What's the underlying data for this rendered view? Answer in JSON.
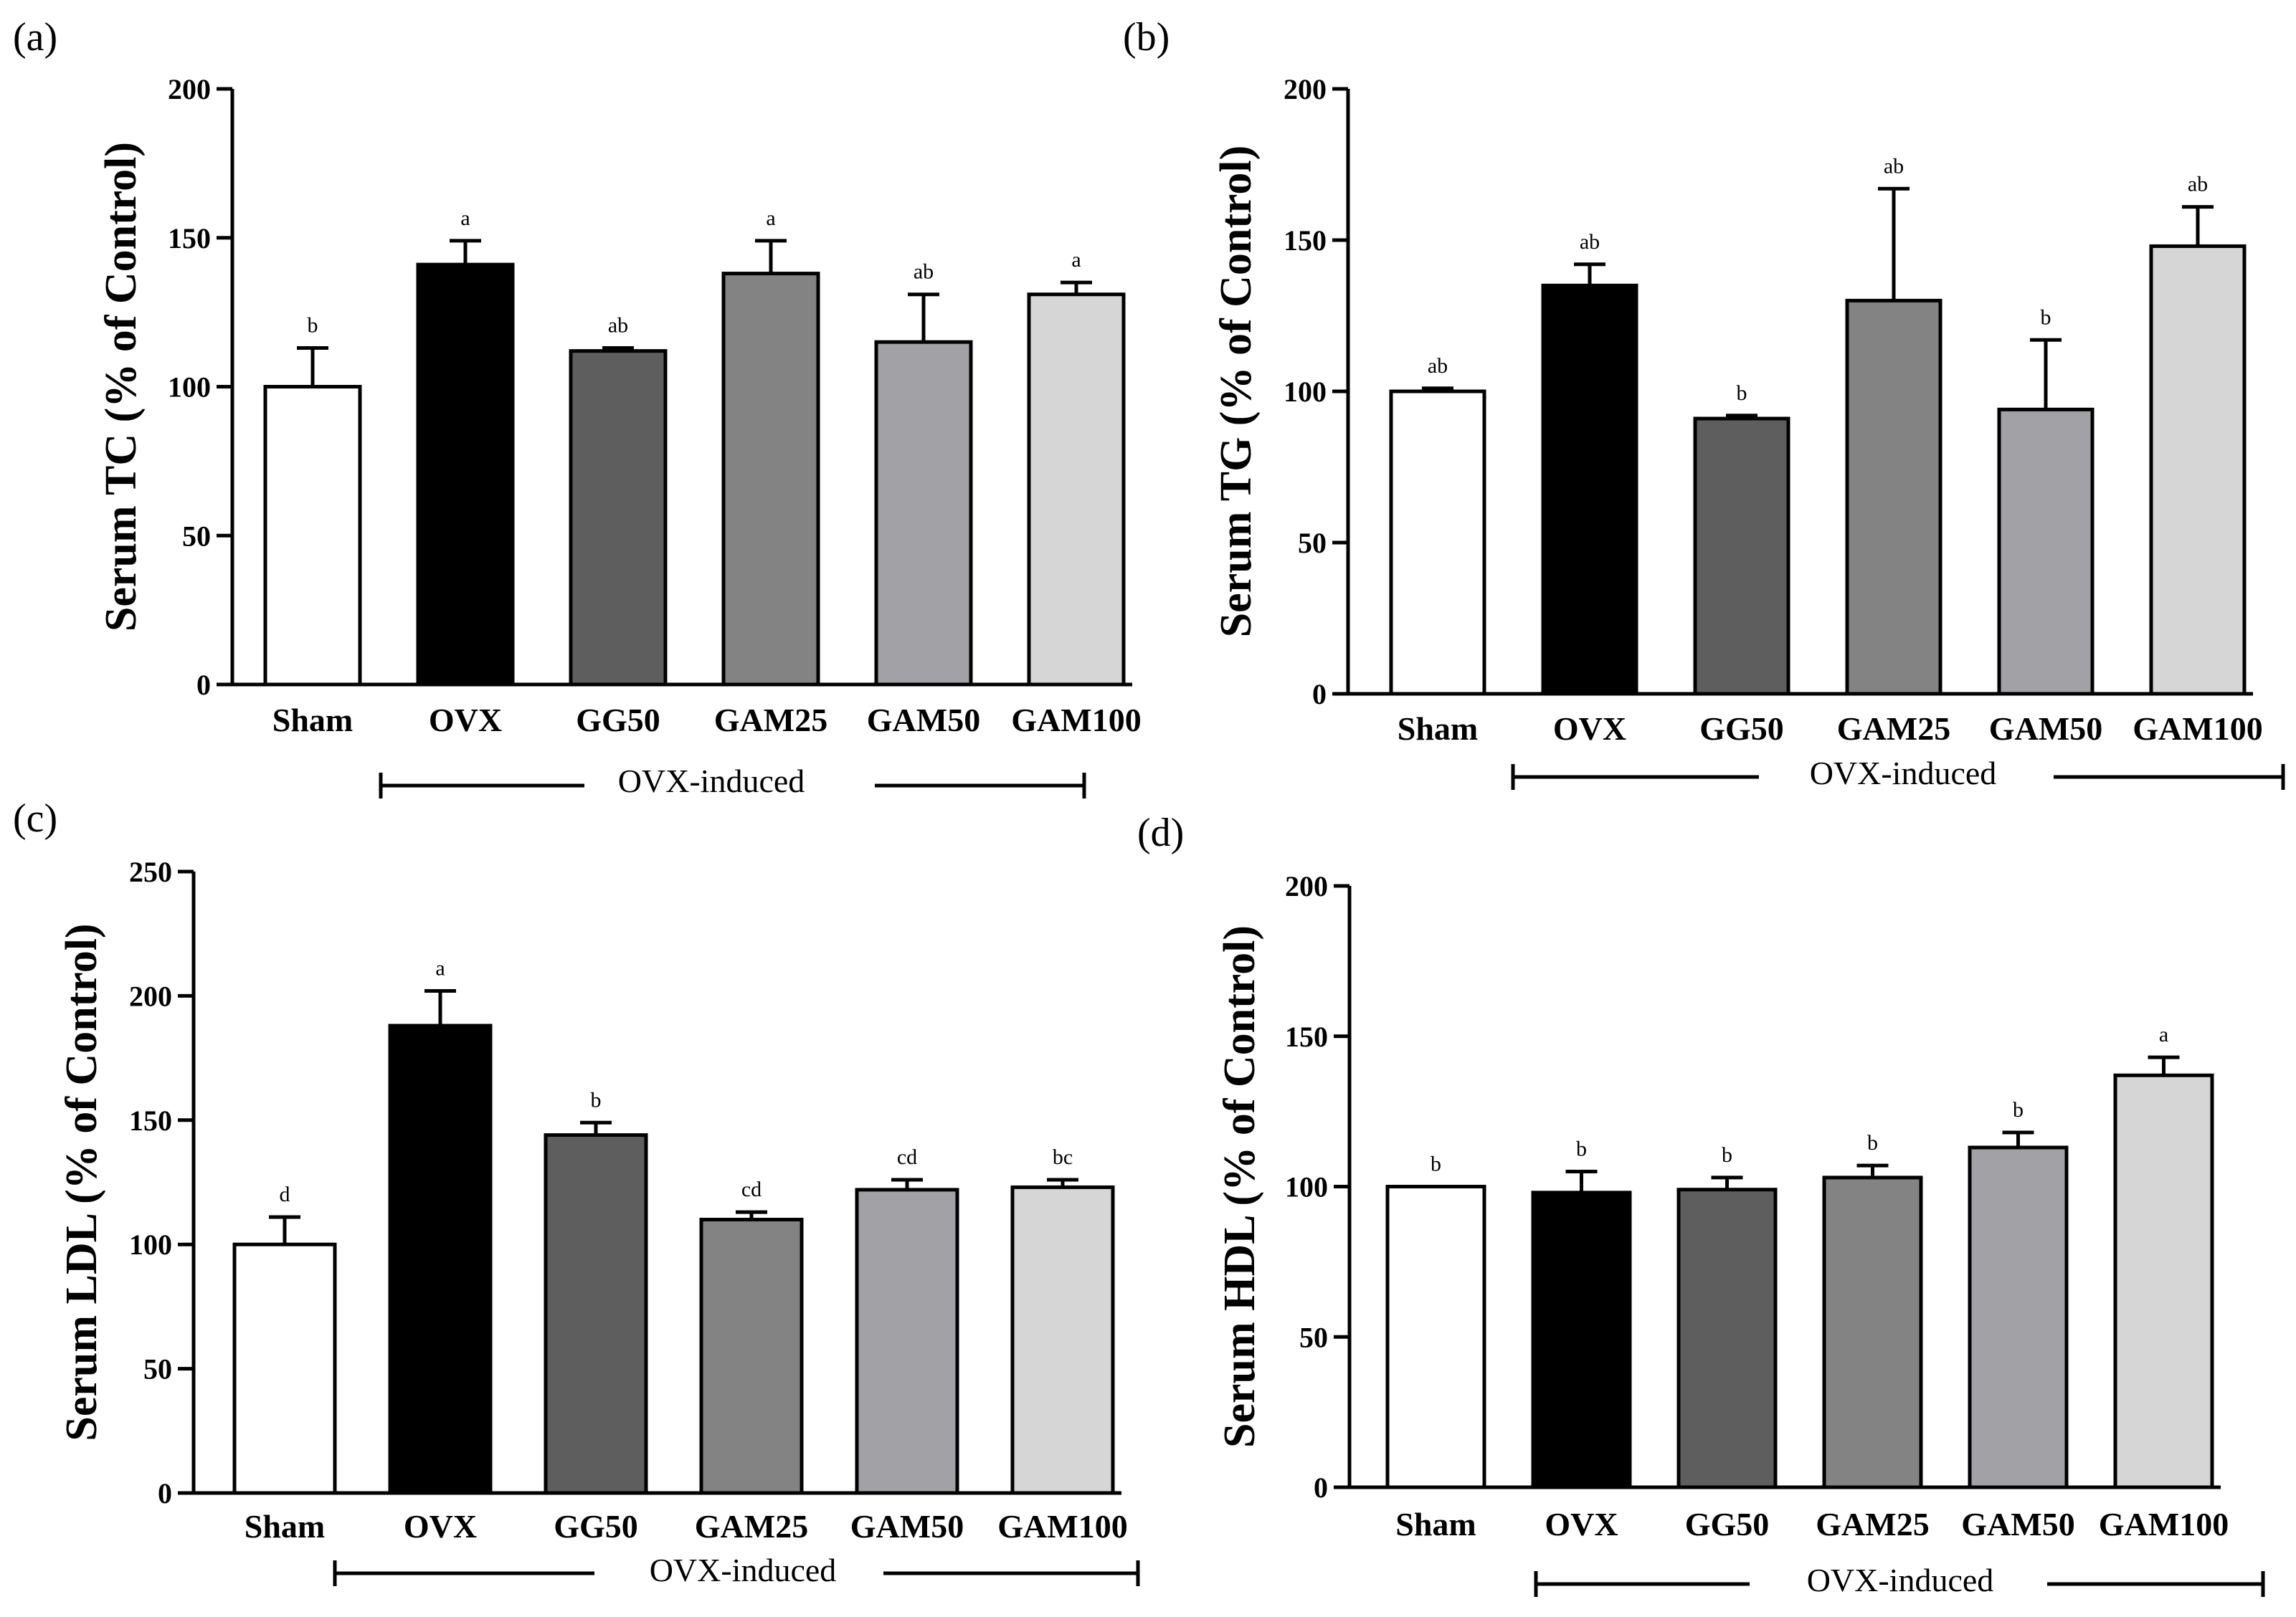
{
  "chart_data": [
    {
      "type": "bar",
      "panel_label": "(a)",
      "ylabel": "Serum TC (% of Control)",
      "ylim": [
        0,
        200
      ],
      "yticks": [
        0,
        50,
        100,
        150,
        200
      ],
      "categories": [
        "Sham",
        "OVX",
        "GG50",
        "GAM25",
        "GAM50",
        "GAM100"
      ],
      "values": [
        100,
        141,
        112,
        138,
        115,
        131
      ],
      "errors": [
        13,
        8,
        1,
        11,
        16,
        4
      ],
      "significance": [
        "b",
        "a",
        "ab",
        "a",
        "ab",
        "a"
      ],
      "colors": [
        "#ffffff",
        "#000000",
        "#5e5e5e",
        "#838383",
        "#a2a2a6",
        "#d6d6d6"
      ],
      "group_label": "OVX-induced"
    },
    {
      "type": "bar",
      "panel_label": "(b)",
      "ylabel": "Serum TG (% of Control)",
      "ylim": [
        0,
        200
      ],
      "yticks": [
        0,
        50,
        100,
        150,
        200
      ],
      "categories": [
        "Sham",
        "OVX",
        "GG50",
        "GAM25",
        "GAM50",
        "GAM100"
      ],
      "values": [
        100,
        135,
        91,
        130,
        94,
        148
      ],
      "errors": [
        1,
        7,
        1,
        37,
        23,
        13
      ],
      "significance": [
        "ab",
        "ab",
        "b",
        "ab",
        "b",
        "ab"
      ],
      "colors": [
        "#ffffff",
        "#000000",
        "#5e5e5e",
        "#838383",
        "#a2a2a6",
        "#d6d6d6"
      ],
      "group_label": "OVX-induced"
    },
    {
      "type": "bar",
      "panel_label": "(c)",
      "ylabel": "Serum LDL (% of Control)",
      "ylim": [
        0,
        250
      ],
      "yticks": [
        0,
        50,
        100,
        150,
        200,
        250
      ],
      "categories": [
        "Sham",
        "OVX",
        "GG50",
        "GAM25",
        "GAM50",
        "GAM100"
      ],
      "values": [
        100,
        188,
        144,
        110,
        122,
        123
      ],
      "errors": [
        11,
        14,
        5,
        3,
        4,
        3
      ],
      "significance": [
        "d",
        "a",
        "b",
        "cd",
        "cd",
        "bc"
      ],
      "colors": [
        "#ffffff",
        "#000000",
        "#5e5e5e",
        "#838383",
        "#a2a2a6",
        "#d6d6d6"
      ],
      "group_label": "OVX-induced"
    },
    {
      "type": "bar",
      "panel_label": "(d)",
      "ylabel": "Serum HDL (% of Control)",
      "ylim": [
        0,
        200
      ],
      "yticks": [
        0,
        50,
        100,
        150,
        200
      ],
      "categories": [
        "Sham",
        "OVX",
        "GG50",
        "GAM25",
        "GAM50",
        "GAM100"
      ],
      "values": [
        100,
        98,
        99,
        103,
        113,
        137
      ],
      "errors": [
        0,
        7,
        4,
        4,
        5,
        6
      ],
      "significance": [
        "b",
        "b",
        "b",
        "b",
        "b",
        "a"
      ],
      "colors": [
        "#ffffff",
        "#000000",
        "#5e5e5e",
        "#838383",
        "#a2a2a6",
        "#d6d6d6"
      ],
      "group_label": "OVX-induced"
    }
  ]
}
